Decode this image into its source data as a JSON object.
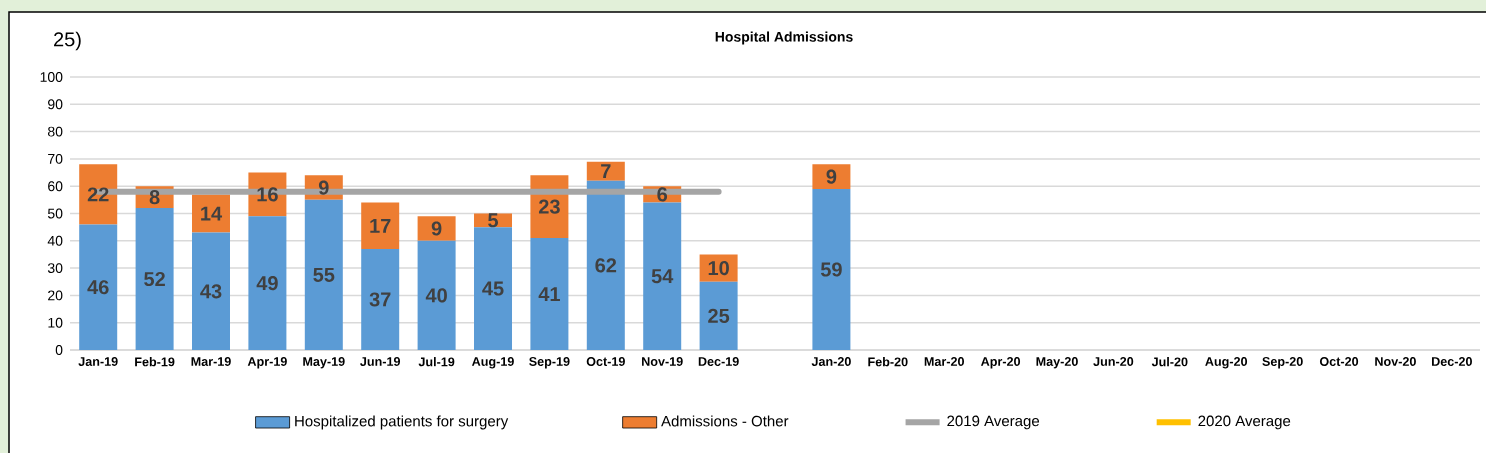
{
  "chart_data": {
    "type": "bar",
    "title": "Hospital Admissions",
    "annotations": [
      "25)"
    ],
    "categories": [
      "Jan-19",
      "Feb-19",
      "Mar-19",
      "Apr-19",
      "May-19",
      "Jun-19",
      "Jul-19",
      "Aug-19",
      "Sep-19",
      "Oct-19",
      "Nov-19",
      "Dec-19",
      null,
      "Jan-20",
      "Feb-20",
      "Mar-20",
      "Apr-20",
      "May-20",
      "Jun-20",
      "Jul-20",
      "Aug-20",
      "Sep-20",
      "Oct-20",
      "Nov-20",
      "Dec-20"
    ],
    "series": [
      {
        "name": "Hospitalized patients for surgery",
        "color": "#5b9bd5",
        "values": [
          46,
          52,
          43,
          49,
          55,
          37,
          40,
          45,
          41,
          62,
          54,
          25,
          null,
          59,
          null,
          null,
          null,
          null,
          null,
          null,
          null,
          null,
          null,
          null,
          null
        ]
      },
      {
        "name": "Admissions - Other",
        "color": "#ed7d31",
        "values": [
          22,
          8,
          14,
          16,
          9,
          17,
          9,
          5,
          23,
          7,
          6,
          10,
          null,
          9,
          null,
          null,
          null,
          null,
          null,
          null,
          null,
          null,
          null,
          null,
          null
        ]
      },
      {
        "name": "2019 Average",
        "type": "line",
        "color": "#a5a5a5",
        "values": [
          58,
          58,
          58,
          58,
          58,
          58,
          58,
          58,
          58,
          58,
          58,
          58,
          null,
          null,
          null,
          null,
          null,
          null,
          null,
          null,
          null,
          null,
          null,
          null,
          null
        ],
        "value_labels": [
          null,
          null,
          null,
          null,
          null,
          null,
          null,
          null,
          null,
          null,
          null,
          null,
          null,
          null,
          null,
          null,
          null,
          null,
          null,
          null,
          null,
          null,
          null,
          null,
          null
        ]
      },
      {
        "name": "2020 Average",
        "type": "line",
        "color": "#ffc000",
        "values": [
          null,
          null,
          null,
          null,
          null,
          null,
          null,
          null,
          null,
          null,
          null,
          null,
          null,
          null,
          null,
          null,
          null,
          null,
          null,
          null,
          null,
          null,
          null,
          null,
          null
        ]
      }
    ],
    "stacked": true,
    "data_labels": true,
    "ylim": [
      0,
      100
    ],
    "yticks": [
      0,
      10,
      20,
      30,
      40,
      50,
      60,
      70,
      80,
      90,
      100
    ],
    "grid": "y",
    "legend": "bottom"
  }
}
